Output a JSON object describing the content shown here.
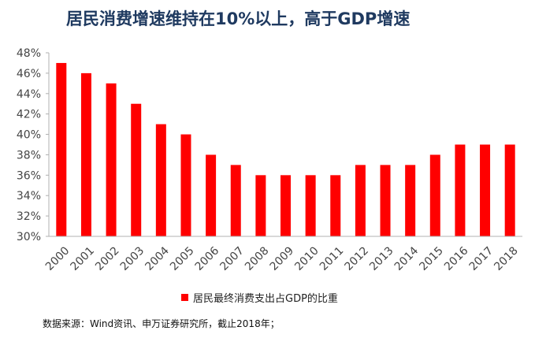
{
  "chart_data": {
    "type": "bar",
    "title": "居民消费增速维持在10%以上，高于GDP增速",
    "categories": [
      "2000",
      "2001",
      "2002",
      "2003",
      "2004",
      "2005",
      "2006",
      "2007",
      "2008",
      "2009",
      "2010",
      "2011",
      "2012",
      "2013",
      "2014",
      "2015",
      "2016",
      "2017",
      "2018"
    ],
    "series": [
      {
        "name": "居民最终消费支出占GDP的比重",
        "values": [
          47,
          46,
          45,
          43,
          41,
          40,
          38,
          37,
          36,
          36,
          36,
          36,
          37,
          37,
          37,
          38,
          39,
          39,
          39
        ]
      }
    ],
    "y_unit": "%",
    "ylim": [
      30,
      48
    ],
    "y_ticks": [
      30,
      32,
      34,
      36,
      38,
      40,
      42,
      44,
      46,
      48
    ],
    "y_tick_labels": [
      "30%",
      "32%",
      "34%",
      "36%",
      "38%",
      "40%",
      "42%",
      "44%",
      "46%",
      "48%"
    ],
    "grid": false,
    "legend_position": "bottom",
    "bar_color": "#ff0000",
    "axis_color": "#b0b0b0",
    "source_note": "数据来源：Wind资讯、申万证券研究所，截止2018年；"
  }
}
